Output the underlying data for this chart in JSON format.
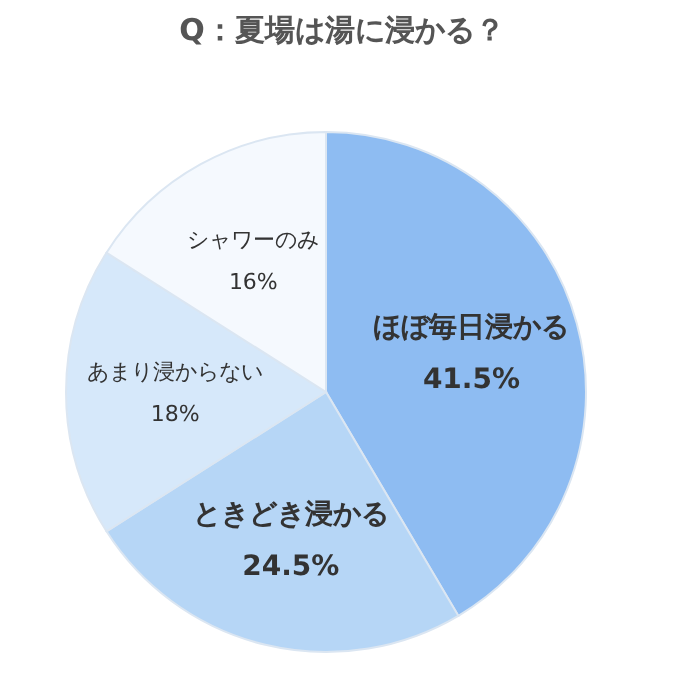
{
  "chart_data": {
    "type": "pie",
    "title": "Q：夏場は湯に浸かる？",
    "categories": [
      "ほぼ毎日浸かる",
      "ときどき浸かる",
      "あまり浸からない",
      "シャワーのみ"
    ],
    "values": [
      41.5,
      24.5,
      18,
      16
    ],
    "value_labels": [
      "41.5%",
      "24.5%",
      "18%",
      "16%"
    ],
    "colors": [
      "#8ebcf2",
      "#b6d6f6",
      "#d6e8fa",
      "#f5f9fe"
    ],
    "legend": false
  }
}
